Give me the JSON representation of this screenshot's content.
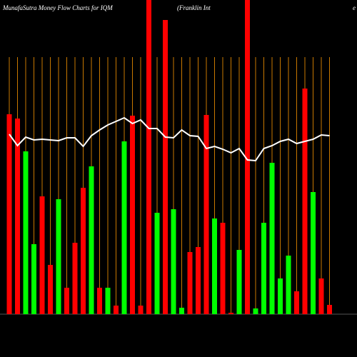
{
  "chart_data": {
    "type": "bar",
    "title": "MunafaSutra  Money Flow  Charts for IQM",
    "subtitle": "(Franklin  Int",
    "subtitle_tail": "e",
    "ylim": [
      0,
      440
    ],
    "series": [
      {
        "name": "Money Flow",
        "colors": [
          "#ff0000",
          "#ff0000",
          "#00ff00",
          "#00ff00",
          "#ff0000",
          "#ff0000",
          "#00ff00",
          "#ff0000",
          "#ff0000",
          "#ff0000",
          "#00ff00",
          "#ff0000",
          "#00ff00",
          "#ff0000",
          "#00ff00",
          "#ff0000",
          "#ff0000",
          "#ff0000",
          "#00ff00",
          "#ff0000",
          "#00ff00",
          "#00ff00",
          "#ff0000",
          "#ff0000",
          "#ff0000",
          "#00ff00",
          "#ff0000",
          "#ff0000",
          "#00ff00",
          "#ff0000",
          "#00ff00",
          "#00ff00",
          "#00ff00",
          "#00ff00",
          "#00ff00",
          "#ff0000",
          "#ff0000",
          "#00ff00",
          "#ff0000",
          "#ff0000"
        ],
        "values": [
          280,
          274,
          228,
          98,
          165,
          69,
          161,
          37,
          100,
          177,
          207,
          37,
          37,
          12,
          242,
          278,
          12,
          440,
          142,
          412,
          147,
          9,
          87,
          94,
          279,
          134,
          128,
          2,
          90,
          440,
          8,
          128,
          212,
          50,
          82,
          32,
          316,
          171,
          50,
          13
        ]
      },
      {
        "name": "Trend",
        "color": "#ffffff",
        "values": [
          252,
          236,
          248,
          244,
          245,
          244,
          243,
          247,
          247,
          235,
          250,
          258,
          265,
          270,
          275,
          267,
          272,
          260,
          260,
          248,
          247,
          258,
          250,
          249,
          232,
          235,
          231,
          226,
          232,
          216,
          215,
          232,
          236,
          242,
          245,
          239,
          242,
          245,
          251,
          250
        ]
      }
    ]
  }
}
